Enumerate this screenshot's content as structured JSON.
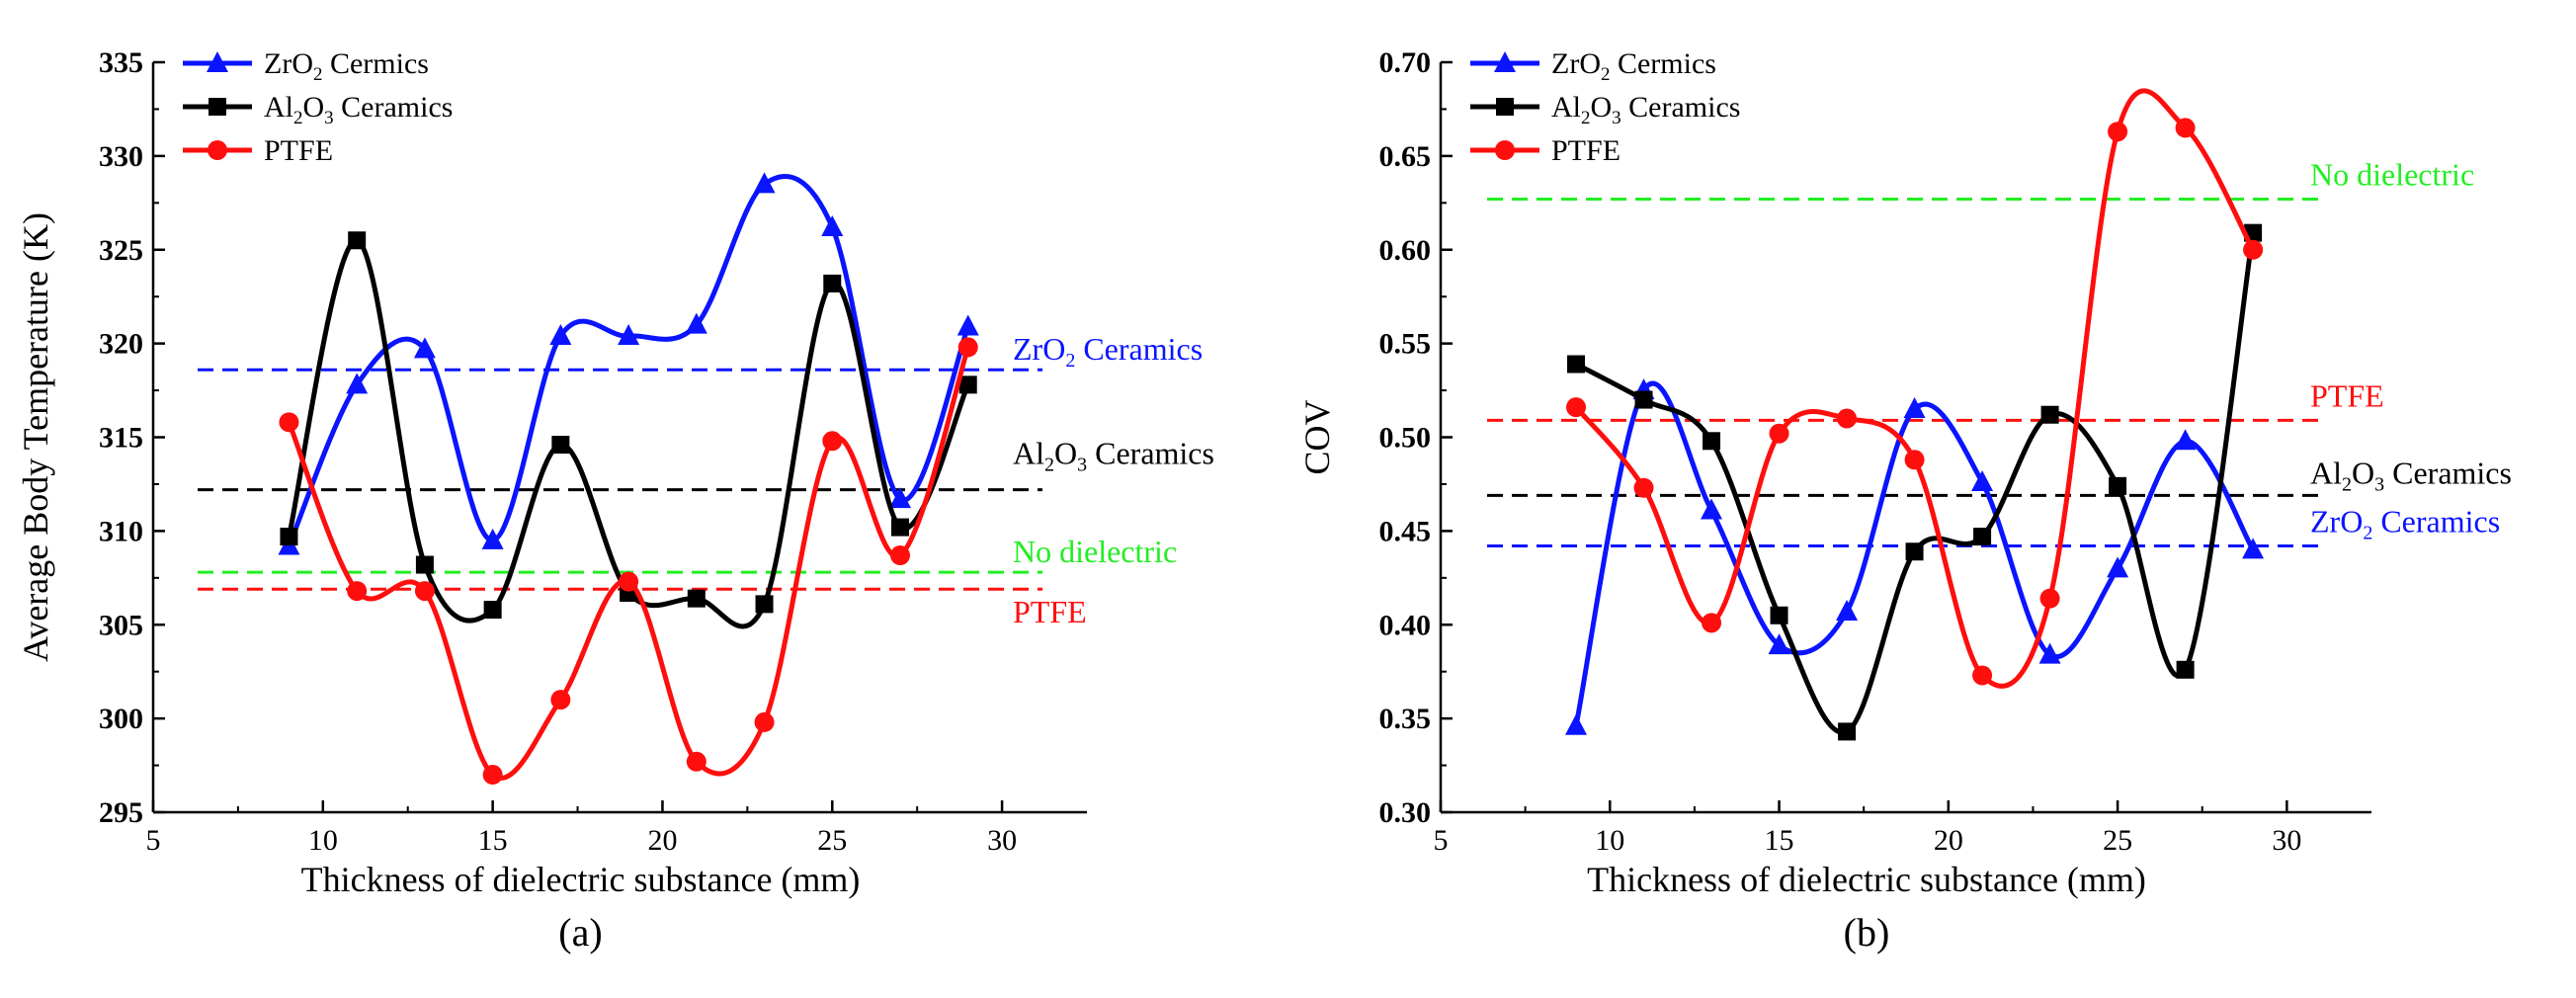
{
  "colors": {
    "zro2": "#0a14ff",
    "al2o3": "#000000",
    "ptfe": "#ff0e0e",
    "none": "#22ee22"
  },
  "chart_data": [
    {
      "type": "line",
      "panel_label": "(a)",
      "xlabel": "Thickness of dielectric substance (mm)",
      "ylabel": "Average Body Temperature (K)",
      "xlim": [
        5,
        32.5
      ],
      "ylim": [
        295,
        335
      ],
      "xticks": [
        5,
        10,
        15,
        20,
        25,
        30
      ],
      "yticks": [
        295,
        300,
        305,
        310,
        315,
        320,
        325,
        330,
        335
      ],
      "x": [
        9,
        11,
        13,
        15,
        17,
        19,
        21,
        23,
        25,
        27,
        29
      ],
      "legend_position": "top-left",
      "series": [
        {
          "key": "zro2",
          "name": "ZrO₂ Cermics",
          "name_main": "ZrO",
          "name_sub": "2",
          "name_rest": " Cermics",
          "marker": "triangle",
          "values": [
            309.2,
            317.8,
            319.7,
            309.5,
            320.4,
            320.4,
            321.0,
            328.5,
            326.2,
            311.7,
            320.9
          ]
        },
        {
          "key": "al2o3",
          "name": "Al₂O₃ Ceramics",
          "name_main": "Al",
          "name_sub": "2",
          "name_main2": "O",
          "name_sub2": "3",
          "name_rest": " Ceramics",
          "marker": "square",
          "values": [
            309.7,
            325.5,
            308.2,
            305.8,
            314.6,
            306.7,
            306.4,
            306.1,
            323.2,
            310.2,
            317.8
          ]
        },
        {
          "key": "ptfe",
          "name": "PTFE",
          "marker": "circle",
          "values": [
            315.8,
            306.8,
            306.8,
            297.0,
            301.0,
            307.3,
            297.7,
            299.8,
            314.8,
            308.7,
            319.8
          ]
        }
      ],
      "reference_lines": [
        {
          "key": "zro2",
          "label": "ZrO₂ Ceramics",
          "label_main": "ZrO",
          "label_sub": "2",
          "label_rest": " Ceramics",
          "value": 318.6,
          "label_dy": -10
        },
        {
          "key": "al2o3",
          "label": "Al₂O₃ Ceramics",
          "label_main": "Al",
          "label_sub": "2",
          "label_main2": "O",
          "label_sub2": "3",
          "label_rest": " Ceramics",
          "value": 312.2,
          "label_dy": -26
        },
        {
          "key": "none",
          "label": "No dielectric",
          "value": 307.8,
          "label_dy": -10
        },
        {
          "key": "ptfe",
          "label": "PTFE",
          "value": 306.9,
          "label_dy": 34
        }
      ]
    },
    {
      "type": "line",
      "panel_label": "(b)",
      "xlabel": "Thickness of dielectric substance (mm)",
      "ylabel": "COV",
      "xlim": [
        5,
        32.5
      ],
      "ylim": [
        0.3,
        0.7
      ],
      "xticks": [
        5,
        10,
        15,
        20,
        25,
        30
      ],
      "yticks": [
        "0.30",
        "0.35",
        "0.40",
        "0.45",
        "0.50",
        "0.55",
        "0.60",
        "0.65",
        "0.70"
      ],
      "x": [
        9,
        11,
        13,
        15,
        17,
        19,
        21,
        23,
        25,
        27,
        29
      ],
      "legend_position": "top-left",
      "series": [
        {
          "key": "zro2",
          "name": "ZrO₂ Cermics",
          "name_main": "ZrO",
          "name_sub": "2",
          "name_rest": " Cermics",
          "marker": "triangle",
          "values": [
            0.346,
            0.525,
            0.461,
            0.389,
            0.407,
            0.515,
            0.476,
            0.384,
            0.43,
            0.498,
            0.44
          ]
        },
        {
          "key": "al2o3",
          "name": "Al₂O₃ Ceramics",
          "name_main": "Al",
          "name_sub": "2",
          "name_main2": "O",
          "name_sub2": "3",
          "name_rest": " Ceramics",
          "marker": "square",
          "values": [
            0.539,
            0.52,
            0.498,
            0.405,
            0.343,
            0.439,
            0.447,
            0.512,
            0.474,
            0.376,
            0.609
          ]
        },
        {
          "key": "ptfe",
          "name": "PTFE",
          "marker": "circle",
          "values": [
            0.516,
            0.473,
            0.401,
            0.502,
            0.51,
            0.488,
            0.373,
            0.414,
            0.663,
            0.665,
            0.6
          ]
        }
      ],
      "reference_lines": [
        {
          "key": "none",
          "label": "No dielectric",
          "value": 0.627,
          "label_dy": -14
        },
        {
          "key": "ptfe",
          "label": "PTFE",
          "value": 0.509,
          "label_dy": -14
        },
        {
          "key": "al2o3",
          "label": "Al₂O₃ Ceramics",
          "label_main": "Al",
          "label_sub": "2",
          "label_main2": "O",
          "label_sub2": "3",
          "label_rest": " Ceramics",
          "value": 0.469,
          "label_dy": -12
        },
        {
          "key": "zro2",
          "label": "ZrO₂ Ceramics",
          "label_main": "ZrO",
          "label_sub": "2",
          "label_rest": " Ceramics",
          "value": 0.442,
          "label_dy": -14
        }
      ]
    }
  ]
}
